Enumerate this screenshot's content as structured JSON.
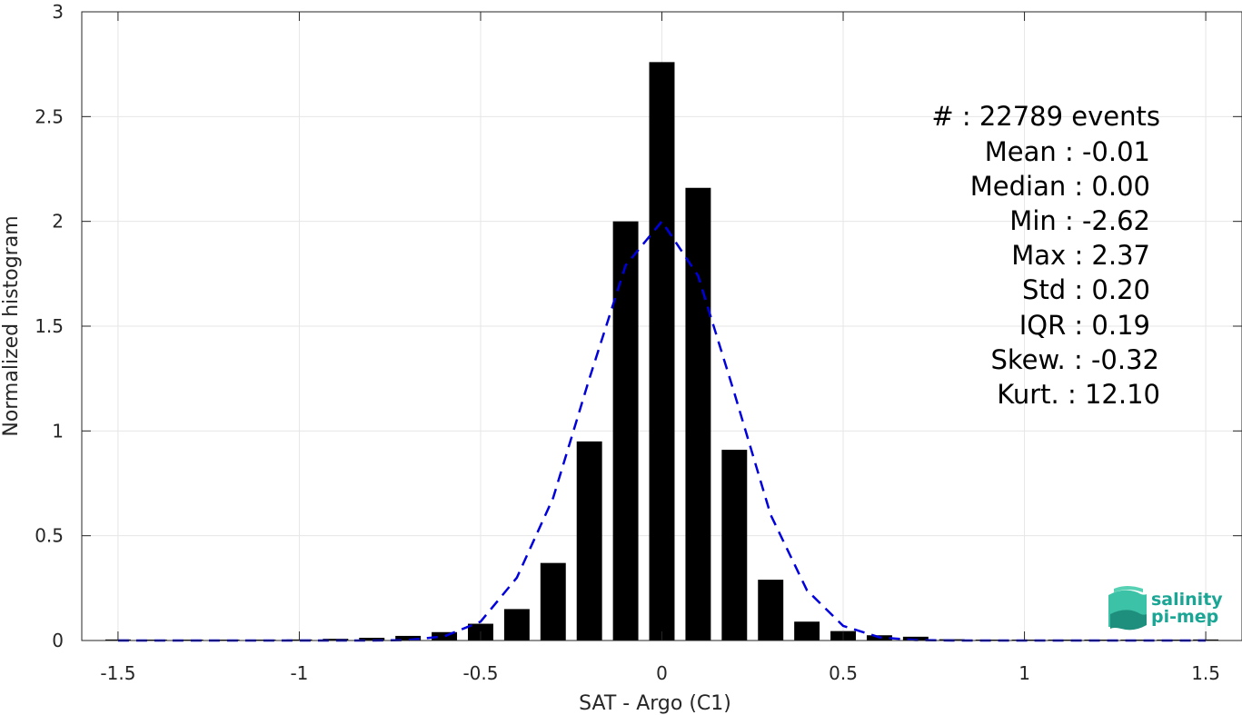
{
  "chart_data": {
    "type": "bar",
    "xlabel": "SAT - Argo (C1)",
    "ylabel": "Normalized histogram",
    "xlim": [
      -1.6,
      1.6
    ],
    "ylim": [
      0,
      3
    ],
    "grid": true,
    "x_ticks": [
      -1.5,
      -1,
      -0.5,
      0,
      0.5,
      1,
      1.5
    ],
    "x_tick_labels": [
      "-1.5",
      "-1",
      "-0.5",
      "0",
      "0.5",
      "1",
      "1.5"
    ],
    "y_ticks": [
      0,
      0.5,
      1,
      1.5,
      2,
      2.5,
      3
    ],
    "y_tick_labels": [
      "0",
      "0.5",
      "1",
      "1.5",
      "2",
      "2.5",
      "3"
    ],
    "bar_width": 0.07,
    "bar_color": "#000000",
    "series": [
      {
        "x": [
          -1.5,
          -1.4,
          -1.3,
          -1.2,
          -1.1,
          -1.0,
          -0.9,
          -0.8,
          -0.7,
          -0.6,
          -0.5,
          -0.4,
          -0.3,
          -0.2,
          -0.1,
          0.0,
          0.1,
          0.2,
          0.3,
          0.4,
          0.5,
          0.6,
          0.7,
          0.8,
          0.9,
          1.0,
          1.1,
          1.2,
          1.3,
          1.4,
          1.5
        ],
        "values": [
          0.005,
          0.002,
          0.002,
          0.002,
          0.003,
          0.005,
          0.008,
          0.013,
          0.022,
          0.04,
          0.08,
          0.15,
          0.37,
          0.95,
          2.0,
          2.76,
          2.16,
          0.91,
          0.29,
          0.09,
          0.045,
          0.025,
          0.018,
          0.006,
          0.004,
          0.002,
          0.002,
          0.002,
          0.002,
          0.002,
          0.005
        ]
      },
      {
        "style": "dashed",
        "color": "#0000dd",
        "x": [
          -1.5,
          -1.4,
          -1.3,
          -1.2,
          -1.1,
          -1.0,
          -0.9,
          -0.8,
          -0.7,
          -0.6,
          -0.5,
          -0.4,
          -0.3,
          -0.2,
          -0.1,
          0.0,
          0.1,
          0.2,
          0.3,
          0.4,
          0.5,
          0.6,
          0.7,
          0.8,
          0.9,
          1.0,
          1.1,
          1.2,
          1.3,
          1.4,
          1.5
        ],
        "values": [
          0.0,
          0.0,
          0.0,
          0.0,
          0.0,
          0.0,
          0.0,
          0.0,
          0.002,
          0.02,
          0.09,
          0.3,
          0.68,
          1.25,
          1.79,
          2.0,
          1.74,
          1.18,
          0.6,
          0.24,
          0.07,
          0.015,
          0.002,
          0.0,
          0.0,
          0.0,
          0.0,
          0.0,
          0.0,
          0.0,
          0.0
        ]
      }
    ],
    "annotations": [
      "#  : 22789 events",
      "Mean : -0.01",
      "Median : 0.00",
      "Min : -2.62",
      "Max : 2.37",
      "Std : 0.20",
      "IQR : 0.19",
      "Skew. : -0.32",
      "Kurt. : 12.10"
    ]
  },
  "logo": {
    "line1": "salinity",
    "line2": "pi-mep",
    "color": "#1aa594"
  }
}
